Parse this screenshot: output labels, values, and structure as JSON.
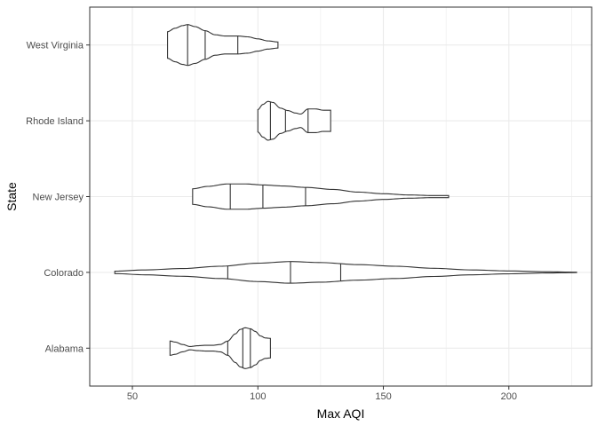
{
  "chart_data": {
    "type": "violin",
    "orientation": "horizontal",
    "xlabel": "Max AQI",
    "ylabel": "State",
    "xlim": [
      33,
      233
    ],
    "x_ticks": [
      50,
      100,
      150,
      200
    ],
    "grid": true,
    "quantile_lines": [
      0.25,
      0.5,
      0.75
    ],
    "colors": {
      "outline": "#333333",
      "fill": "#ffffff",
      "grid": "#ebebeb",
      "panel_border": "#333333"
    },
    "categories": [
      "Alabama",
      "Colorado",
      "New Jersey",
      "Rhode Island",
      "West Virginia"
    ],
    "series": [
      {
        "name": "Alabama",
        "min": 65,
        "max": 105,
        "quantiles": [
          88,
          94,
          97
        ],
        "profile": [
          [
            65,
            0.35
          ],
          [
            67,
            0.3
          ],
          [
            70,
            0.18
          ],
          [
            73,
            0.08
          ],
          [
            76,
            0.12
          ],
          [
            79,
            0.14
          ],
          [
            82,
            0.14
          ],
          [
            85,
            0.18
          ],
          [
            88,
            0.35
          ],
          [
            91,
            0.7
          ],
          [
            93,
            0.92
          ],
          [
            95,
            1.0
          ],
          [
            97,
            0.95
          ],
          [
            99,
            0.82
          ],
          [
            101,
            0.6
          ],
          [
            103,
            0.5
          ],
          [
            105,
            0.48
          ]
        ]
      },
      {
        "name": "Colorado",
        "min": 43,
        "max": 227,
        "quantiles": [
          88,
          113,
          133
        ],
        "profile": [
          [
            43,
            0.06
          ],
          [
            55,
            0.12
          ],
          [
            70,
            0.19
          ],
          [
            85,
            0.3
          ],
          [
            100,
            0.45
          ],
          [
            113,
            0.53
          ],
          [
            125,
            0.48
          ],
          [
            140,
            0.38
          ],
          [
            155,
            0.3
          ],
          [
            170,
            0.2
          ],
          [
            185,
            0.12
          ],
          [
            200,
            0.07
          ],
          [
            215,
            0.03
          ],
          [
            227,
            0.01
          ]
        ]
      },
      {
        "name": "New Jersey",
        "min": 74,
        "max": 176,
        "quantiles": [
          89,
          102,
          119
        ],
        "profile": [
          [
            74,
            0.38
          ],
          [
            80,
            0.5
          ],
          [
            88,
            0.62
          ],
          [
            95,
            0.62
          ],
          [
            102,
            0.57
          ],
          [
            110,
            0.52
          ],
          [
            119,
            0.45
          ],
          [
            130,
            0.35
          ],
          [
            140,
            0.22
          ],
          [
            150,
            0.14
          ],
          [
            160,
            0.08
          ],
          [
            170,
            0.05
          ],
          [
            176,
            0.05
          ]
        ]
      },
      {
        "name": "Rhode Island",
        "min": 100,
        "max": 129,
        "quantiles": [
          105,
          111,
          120
        ],
        "profile": [
          [
            100,
            0.55
          ],
          [
            102,
            0.8
          ],
          [
            104,
            0.95
          ],
          [
            106,
            0.9
          ],
          [
            109,
            0.62
          ],
          [
            112,
            0.5
          ],
          [
            115,
            0.38
          ],
          [
            117,
            0.33
          ],
          [
            120,
            0.58
          ],
          [
            123,
            0.58
          ],
          [
            126,
            0.52
          ],
          [
            129,
            0.52
          ]
        ]
      },
      {
        "name": "West Virginia",
        "min": 64,
        "max": 108,
        "quantiles": [
          72,
          79,
          92
        ],
        "profile": [
          [
            64,
            0.65
          ],
          [
            67,
            0.82
          ],
          [
            70,
            0.95
          ],
          [
            72,
            1.0
          ],
          [
            75,
            0.9
          ],
          [
            79,
            0.7
          ],
          [
            83,
            0.5
          ],
          [
            87,
            0.44
          ],
          [
            92,
            0.44
          ],
          [
            96,
            0.4
          ],
          [
            100,
            0.3
          ],
          [
            104,
            0.2
          ],
          [
            108,
            0.15
          ]
        ]
      }
    ]
  }
}
